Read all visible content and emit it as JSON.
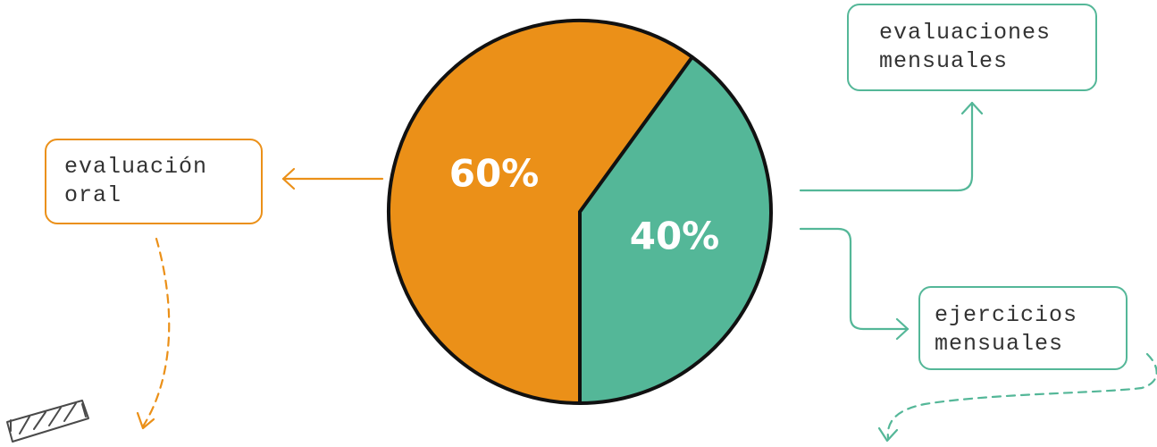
{
  "chart_data": {
    "type": "pie",
    "slices": [
      {
        "label": "60%",
        "value": 60,
        "color": "#EB9018"
      },
      {
        "label": "40%",
        "value": 40,
        "color": "#54B798"
      }
    ]
  },
  "boxes": {
    "oral": {
      "line1": "evaluación",
      "line2": "oral",
      "color": "#EB9018"
    },
    "evaluaciones": {
      "line1": "evaluaciones",
      "line2": "mensuales",
      "color": "#54B798"
    },
    "ejercicios": {
      "line1": "ejercicios",
      "line2": "mensuales",
      "color": "#54B798"
    }
  },
  "icons": {
    "decoration": "striped-tape-icon"
  }
}
